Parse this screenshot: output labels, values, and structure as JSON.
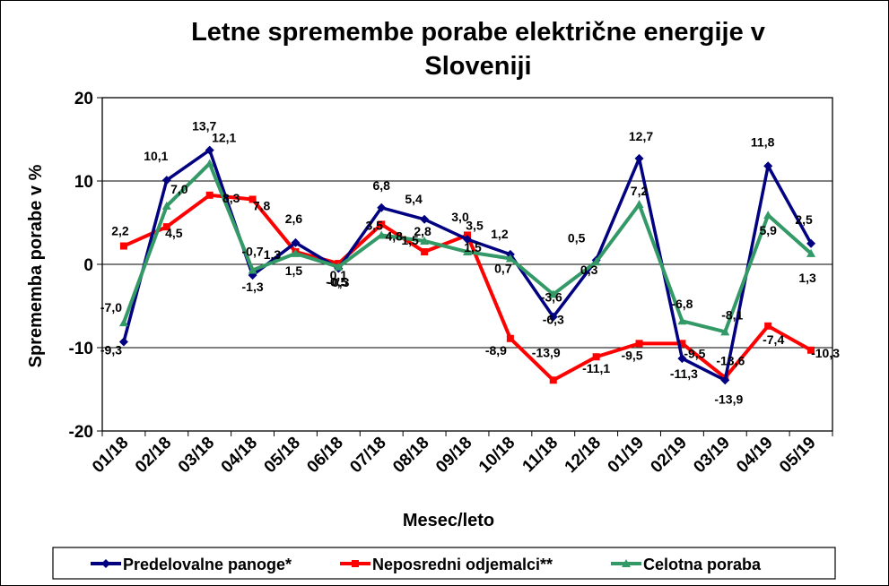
{
  "chart_data": {
    "type": "line",
    "title_lines": [
      "Letne spremembe porabe električne energije v",
      "Sloveniji"
    ],
    "xlabel": "Mesec/leto",
    "ylabel": "Sprememba porabe v %",
    "ylim": [
      -20,
      20
    ],
    "yticks": [
      "20",
      "10",
      "0",
      "-10",
      "-20"
    ],
    "grid": "horizontal",
    "legend_position": "bottom",
    "categories": [
      "01/18",
      "02/18",
      "03/18",
      "04/18",
      "05/18",
      "06/18",
      "07/18",
      "08/18",
      "09/18",
      "10/18",
      "11/18",
      "12/18",
      "01/19",
      "02/19",
      "03/19",
      "04/19",
      "05/19"
    ],
    "series": [
      {
        "name": "Predelovalne panoge*",
        "color": "#000080",
        "marker": "diamond",
        "values": [
          -9.3,
          10.1,
          13.7,
          -1.3,
          2.6,
          -0.5,
          6.8,
          5.4,
          3.0,
          1.2,
          -6.3,
          0.5,
          12.7,
          -11.3,
          -13.9,
          11.8,
          2.5
        ],
        "labels": [
          "-9,3",
          "10,1",
          "13,7",
          "-1,3",
          "2,6",
          "-0,5",
          "6,8",
          "5,4",
          "3,0",
          "1,2",
          "-6,3",
          "0,5",
          "12,7",
          "-11,3",
          "-13,9",
          "11,8",
          "2,5"
        ]
      },
      {
        "name": "Neposredni odjemalci**",
        "color": "#ff0000",
        "marker": "square",
        "values": [
          2.2,
          4.5,
          8.3,
          7.8,
          1.5,
          0.1,
          4.8,
          1.5,
          3.5,
          -8.9,
          -13.9,
          -11.1,
          -9.5,
          -9.5,
          -13.6,
          -7.4,
          -10.3
        ],
        "labels": [
          "2,2",
          "4,5",
          "8,3",
          "7,8",
          "1,5",
          "0,1",
          "4,8",
          "1,5",
          "3,5",
          "-8,9",
          "-13,9",
          "-11,1",
          "-9,5",
          "-9,5",
          "-13,6",
          "-7,4",
          "-10,3"
        ]
      },
      {
        "name": "Celotna poraba",
        "color": "#339966",
        "marker": "triangle",
        "values": [
          -7.0,
          7.0,
          12.1,
          -0.7,
          1.3,
          -0.3,
          3.5,
          2.8,
          1.5,
          0.7,
          -3.6,
          0.3,
          7.2,
          -6.8,
          -8.1,
          5.9,
          1.3
        ],
        "labels": [
          "-7,0",
          "7,0",
          "12,1",
          "-0,7",
          "1,3",
          "-0,3",
          "3,5",
          "2,8",
          "1,5",
          "0,7",
          "-3,6",
          "0,3",
          "7,2",
          "-6,8",
          "-8,1",
          "5,9",
          "1,3"
        ]
      }
    ]
  }
}
